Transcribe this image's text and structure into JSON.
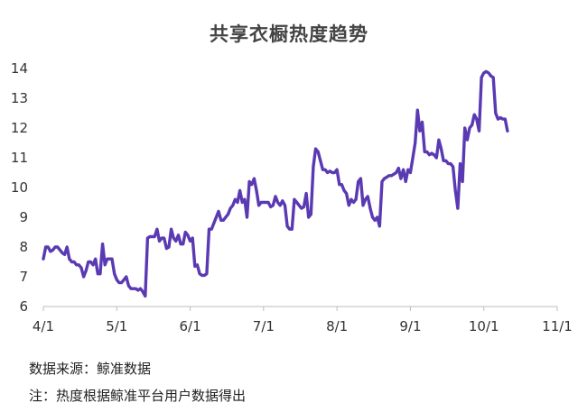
{
  "chart_data": {
    "type": "line",
    "title": "共享衣橱热度趋势",
    "xlabel": "",
    "ylabel": "",
    "ylim": [
      6,
      14
    ],
    "yticks": [
      6,
      7,
      8,
      9,
      10,
      11,
      12,
      13,
      14
    ],
    "xticks": [
      "4/1",
      "5/1",
      "6/1",
      "7/1",
      "8/1",
      "9/1",
      "10/1",
      "11/1"
    ],
    "xlim": [
      0,
      217
    ],
    "grid": false,
    "legend": "none",
    "color": "#5a3ab2",
    "series": [
      {
        "points": [
          [
            0,
            7.6
          ],
          [
            1,
            8.0
          ],
          [
            2,
            8.0
          ],
          [
            3,
            7.85
          ],
          [
            4,
            7.9
          ],
          [
            5,
            8.0
          ],
          [
            6,
            8.0
          ],
          [
            7,
            7.9
          ],
          [
            8,
            7.8
          ],
          [
            9,
            7.75
          ],
          [
            10,
            8.0
          ],
          [
            11,
            7.6
          ],
          [
            12,
            7.5
          ],
          [
            13,
            7.5
          ],
          [
            14,
            7.4
          ],
          [
            15,
            7.4
          ],
          [
            16,
            7.3
          ],
          [
            17,
            7.0
          ],
          [
            18,
            7.2
          ],
          [
            19,
            7.5
          ],
          [
            20,
            7.5
          ],
          [
            21,
            7.4
          ],
          [
            22,
            7.6
          ],
          [
            23,
            7.1
          ],
          [
            24,
            7.1
          ],
          [
            25,
            8.1
          ],
          [
            26,
            7.4
          ],
          [
            27,
            7.6
          ],
          [
            28,
            7.6
          ],
          [
            29,
            7.6
          ],
          [
            30,
            7.1
          ],
          [
            31,
            6.9
          ],
          [
            32,
            6.8
          ],
          [
            33,
            6.8
          ],
          [
            34,
            6.9
          ],
          [
            35,
            7.0
          ],
          [
            36,
            6.7
          ],
          [
            37,
            6.6
          ],
          [
            38,
            6.6
          ],
          [
            39,
            6.6
          ],
          [
            40,
            6.55
          ],
          [
            41,
            6.6
          ],
          [
            42,
            6.5
          ],
          [
            43,
            6.35
          ],
          [
            44,
            8.3
          ],
          [
            45,
            8.35
          ],
          [
            46,
            8.35
          ],
          [
            47,
            8.35
          ],
          [
            48,
            8.6
          ],
          [
            49,
            8.2
          ],
          [
            50,
            8.3
          ],
          [
            51,
            8.3
          ],
          [
            52,
            7.95
          ],
          [
            53,
            8.0
          ],
          [
            54,
            8.6
          ],
          [
            55,
            8.3
          ],
          [
            56,
            8.2
          ],
          [
            57,
            8.4
          ],
          [
            58,
            8.1
          ],
          [
            59,
            8.1
          ],
          [
            60,
            8.5
          ],
          [
            61,
            8.4
          ],
          [
            62,
            8.2
          ],
          [
            63,
            8.3
          ],
          [
            64,
            7.35
          ],
          [
            65,
            7.4
          ],
          [
            66,
            7.1
          ],
          [
            67,
            7.05
          ],
          [
            68,
            7.05
          ],
          [
            69,
            7.1
          ],
          [
            70,
            8.6
          ],
          [
            71,
            8.6
          ],
          [
            72,
            8.8
          ],
          [
            73,
            9.0
          ],
          [
            74,
            9.2
          ],
          [
            75,
            8.9
          ],
          [
            76,
            8.9
          ],
          [
            77,
            9.0
          ],
          [
            78,
            9.1
          ],
          [
            79,
            9.3
          ],
          [
            80,
            9.4
          ],
          [
            81,
            9.6
          ],
          [
            82,
            9.5
          ],
          [
            83,
            9.9
          ],
          [
            84,
            9.5
          ],
          [
            85,
            9.6
          ],
          [
            86,
            9.0
          ],
          [
            87,
            10.2
          ],
          [
            88,
            10.1
          ],
          [
            89,
            10.3
          ],
          [
            90,
            9.9
          ],
          [
            91,
            9.4
          ],
          [
            92,
            9.5
          ],
          [
            93,
            9.5
          ],
          [
            94,
            9.5
          ],
          [
            95,
            9.5
          ],
          [
            96,
            9.35
          ],
          [
            97,
            9.4
          ],
          [
            98,
            9.7
          ],
          [
            99,
            9.5
          ],
          [
            100,
            9.4
          ],
          [
            101,
            9.55
          ],
          [
            102,
            9.4
          ],
          [
            103,
            8.7
          ],
          [
            104,
            8.6
          ],
          [
            105,
            8.6
          ],
          [
            106,
            9.6
          ],
          [
            107,
            9.5
          ],
          [
            108,
            9.4
          ],
          [
            109,
            9.3
          ],
          [
            110,
            9.35
          ],
          [
            111,
            9.8
          ],
          [
            112,
            9.0
          ],
          [
            113,
            9.1
          ],
          [
            114,
            10.7
          ],
          [
            115,
            11.3
          ],
          [
            116,
            11.2
          ],
          [
            117,
            10.9
          ],
          [
            118,
            10.6
          ],
          [
            119,
            10.6
          ],
          [
            120,
            10.5
          ],
          [
            121,
            10.55
          ],
          [
            122,
            10.5
          ],
          [
            123,
            10.5
          ],
          [
            124,
            10.6
          ],
          [
            125,
            10.1
          ],
          [
            126,
            10.1
          ],
          [
            127,
            9.9
          ],
          [
            128,
            9.8
          ],
          [
            129,
            9.4
          ],
          [
            130,
            9.6
          ],
          [
            131,
            9.5
          ],
          [
            132,
            9.6
          ],
          [
            133,
            10.2
          ],
          [
            134,
            10.3
          ],
          [
            135,
            9.4
          ],
          [
            136,
            9.6
          ],
          [
            137,
            9.7
          ],
          [
            138,
            9.3
          ],
          [
            139,
            9.0
          ],
          [
            140,
            8.9
          ],
          [
            141,
            9.0
          ],
          [
            142,
            8.7
          ],
          [
            143,
            10.2
          ],
          [
            144,
            10.3
          ],
          [
            145,
            10.35
          ],
          [
            146,
            10.4
          ],
          [
            147,
            10.4
          ],
          [
            148,
            10.45
          ],
          [
            149,
            10.5
          ],
          [
            150,
            10.65
          ],
          [
            151,
            10.3
          ],
          [
            152,
            10.6
          ],
          [
            153,
            10.2
          ],
          [
            154,
            10.6
          ],
          [
            155,
            10.5
          ],
          [
            156,
            11.0
          ],
          [
            157,
            11.5
          ],
          [
            158,
            12.6
          ],
          [
            159,
            11.9
          ],
          [
            160,
            12.2
          ],
          [
            161,
            11.2
          ],
          [
            162,
            11.2
          ],
          [
            163,
            11.1
          ],
          [
            164,
            11.15
          ],
          [
            165,
            11.1
          ],
          [
            166,
            11.0
          ],
          [
            167,
            11.6
          ],
          [
            168,
            11.3
          ],
          [
            169,
            10.9
          ],
          [
            170,
            10.9
          ],
          [
            171,
            10.8
          ],
          [
            172,
            10.8
          ],
          [
            173,
            10.7
          ],
          [
            174,
            9.9
          ],
          [
            175,
            9.3
          ],
          [
            176,
            10.8
          ],
          [
            177,
            10.2
          ],
          [
            178,
            12.0
          ],
          [
            179,
            11.6
          ],
          [
            180,
            12.0
          ],
          [
            181,
            12.1
          ],
          [
            182,
            12.45
          ],
          [
            183,
            12.3
          ],
          [
            184,
            11.9
          ],
          [
            185,
            13.7
          ],
          [
            186,
            13.85
          ],
          [
            187,
            13.9
          ],
          [
            188,
            13.85
          ],
          [
            189,
            13.75
          ],
          [
            190,
            13.7
          ],
          [
            191,
            12.5
          ],
          [
            192,
            12.3
          ],
          [
            193,
            12.35
          ],
          [
            194,
            12.3
          ],
          [
            195,
            12.3
          ],
          [
            196,
            11.9
          ]
        ]
      }
    ]
  },
  "source_note": "数据来源：鲸准数据",
  "footnote": "注：热度根据鲸准平台用户数据得出"
}
